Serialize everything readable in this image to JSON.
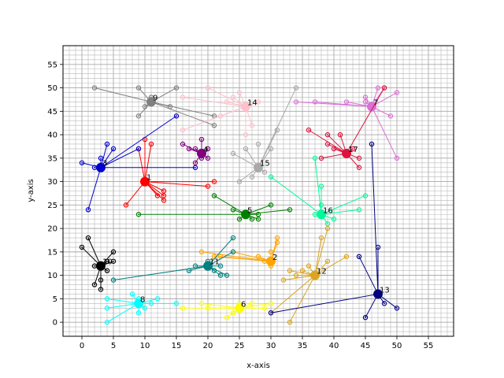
{
  "chart_data": {
    "type": "scatter",
    "title": "",
    "xlabel": "x-axis",
    "ylabel": "y-axis",
    "xlim": [
      -3,
      59
    ],
    "ylim": [
      -3,
      59
    ],
    "grid": true,
    "grid_style": "major and minor, gray",
    "xticks": [
      "0",
      "5",
      "10",
      "15",
      "20",
      "25",
      "30",
      "35",
      "40",
      "45",
      "50",
      "55"
    ],
    "yticks": [
      "0",
      "5",
      "10",
      "15",
      "20",
      "25",
      "30",
      "35",
      "40",
      "45",
      "50",
      "55"
    ],
    "clusters": [
      {
        "label": "1",
        "color": "#ff0000",
        "center": [
          10,
          30
        ],
        "points": [
          [
            7,
            25
          ],
          [
            9,
            37
          ],
          [
            10,
            39
          ],
          [
            11,
            38
          ],
          [
            12,
            27
          ],
          [
            13,
            28
          ],
          [
            13,
            27
          ],
          [
            13,
            26
          ],
          [
            20,
            29
          ],
          [
            21,
            30
          ]
        ]
      },
      {
        "label": "2",
        "color": "#ffa500",
        "center": [
          30,
          13
        ],
        "points": [
          [
            19,
            15
          ],
          [
            21,
            14
          ],
          [
            22,
            14
          ],
          [
            24,
            15
          ],
          [
            28,
            14
          ],
          [
            29,
            13
          ],
          [
            30,
            12
          ],
          [
            30,
            15
          ],
          [
            31,
            17
          ],
          [
            31,
            18
          ]
        ]
      },
      {
        "label": "3",
        "color": "#0000cd",
        "center": [
          3,
          33
        ],
        "points": [
          [
            0,
            34
          ],
          [
            1,
            24
          ],
          [
            2,
            33
          ],
          [
            3,
            35
          ],
          [
            4,
            38
          ],
          [
            5,
            37
          ],
          [
            9,
            37
          ],
          [
            15,
            44
          ],
          [
            18,
            33
          ]
        ]
      },
      {
        "label": "4",
        "color": "#800080",
        "center": [
          19,
          36
        ],
        "points": [
          [
            16,
            38
          ],
          [
            17,
            37
          ],
          [
            18,
            37
          ],
          [
            18,
            34
          ],
          [
            19,
            35
          ],
          [
            19,
            39
          ],
          [
            20,
            35
          ],
          [
            20,
            37
          ]
        ]
      },
      {
        "label": "5",
        "color": "#008000",
        "center": [
          26,
          23
        ],
        "points": [
          [
            9,
            23
          ],
          [
            21,
            27
          ],
          [
            24,
            24
          ],
          [
            25,
            22
          ],
          [
            27,
            22
          ],
          [
            28,
            22
          ],
          [
            28,
            23
          ],
          [
            30,
            25
          ],
          [
            33,
            24
          ]
        ]
      },
      {
        "label": "6",
        "color": "#ffff00",
        "center": [
          25,
          3
        ],
        "points": [
          [
            16,
            3
          ],
          [
            19,
            4
          ],
          [
            20,
            3
          ],
          [
            23,
            1
          ],
          [
            24,
            2
          ],
          [
            25,
            4
          ],
          [
            27,
            4
          ],
          [
            29,
            3
          ],
          [
            30,
            4
          ]
        ]
      },
      {
        "label": "7",
        "color": "#da70d6",
        "center": [
          46,
          46
        ],
        "points": [
          [
            34,
            47
          ],
          [
            37,
            47
          ],
          [
            42,
            47
          ],
          [
            45,
            47
          ],
          [
            45,
            48
          ],
          [
            47,
            50
          ],
          [
            48,
            50
          ],
          [
            49,
            44
          ],
          [
            50,
            49
          ],
          [
            50,
            35
          ]
        ]
      },
      {
        "label": "8",
        "color": "#00ffff",
        "center": [
          9,
          4
        ],
        "points": [
          [
            4,
            5
          ],
          [
            4,
            3
          ],
          [
            4,
            0
          ],
          [
            8,
            6
          ],
          [
            9,
            2
          ],
          [
            9,
            5
          ],
          [
            10,
            3
          ],
          [
            11,
            4
          ],
          [
            12,
            5
          ],
          [
            15,
            4
          ]
        ]
      },
      {
        "label": "9",
        "color": "#808080",
        "center": [
          11,
          47
        ],
        "points": [
          [
            2,
            50
          ],
          [
            9,
            44
          ],
          [
            9,
            50
          ],
          [
            10,
            46
          ],
          [
            11,
            48
          ],
          [
            14,
            46
          ],
          [
            15,
            50
          ],
          [
            21,
            44
          ],
          [
            21,
            42
          ]
        ]
      },
      {
        "label": "10",
        "color": "#000000",
        "center": [
          3,
          12
        ],
        "points": [
          [
            0,
            16
          ],
          [
            1,
            18
          ],
          [
            2,
            12
          ],
          [
            2,
            8
          ],
          [
            3,
            7
          ],
          [
            3,
            9
          ],
          [
            4,
            11
          ],
          [
            4,
            13
          ],
          [
            5,
            15
          ],
          [
            5,
            13
          ]
        ]
      },
      {
        "label": "11",
        "color": "#008080",
        "center": [
          20,
          12
        ],
        "points": [
          [
            5,
            9
          ],
          [
            17,
            11
          ],
          [
            18,
            12
          ],
          [
            20,
            13
          ],
          [
            21,
            11
          ],
          [
            22,
            10
          ],
          [
            22,
            12
          ],
          [
            23,
            10
          ],
          [
            24,
            15
          ],
          [
            24,
            18
          ]
        ]
      },
      {
        "label": "12",
        "color": "#daa520",
        "center": [
          37,
          10
        ],
        "points": [
          [
            30,
            2
          ],
          [
            32,
            9
          ],
          [
            33,
            11
          ],
          [
            34,
            10
          ],
          [
            35,
            11
          ],
          [
            36,
            12
          ],
          [
            33,
            0
          ],
          [
            38,
            18
          ],
          [
            39,
            20
          ],
          [
            39,
            13
          ],
          [
            42,
            14
          ]
        ]
      },
      {
        "label": "13",
        "color": "#000080",
        "center": [
          47,
          6
        ],
        "points": [
          [
            30,
            2
          ],
          [
            44,
            14
          ],
          [
            45,
            1
          ],
          [
            46,
            38
          ],
          [
            47,
            16
          ],
          [
            48,
            4
          ],
          [
            50,
            3
          ]
        ]
      },
      {
        "label": "14",
        "color": "#ffc0cb",
        "center": [
          26,
          46
        ],
        "points": [
          [
            16,
            48
          ],
          [
            16,
            41
          ],
          [
            20,
            50
          ],
          [
            22,
            44
          ],
          [
            23,
            47
          ],
          [
            24,
            48
          ],
          [
            25,
            49
          ],
          [
            26,
            40
          ],
          [
            27,
            42
          ],
          [
            28,
            47
          ]
        ]
      },
      {
        "label": "15",
        "color": "#a9a9a9",
        "center": [
          28,
          33
        ],
        "points": [
          [
            24,
            36
          ],
          [
            25,
            30
          ],
          [
            26,
            37
          ],
          [
            27,
            31
          ],
          [
            28,
            38
          ],
          [
            29,
            32
          ],
          [
            30,
            37
          ],
          [
            31,
            41
          ],
          [
            34,
            50
          ]
        ]
      },
      {
        "label": "16",
        "color": "#00fa9a",
        "center": [
          38,
          23
        ],
        "points": [
          [
            30,
            31
          ],
          [
            37,
            35
          ],
          [
            37,
            23
          ],
          [
            38,
            25
          ],
          [
            38,
            29
          ],
          [
            39,
            21
          ],
          [
            40,
            22
          ],
          [
            44,
            24
          ],
          [
            45,
            27
          ]
        ]
      },
      {
        "label": "17",
        "color": "#dc143c",
        "center": [
          42,
          36
        ],
        "points": [
          [
            36,
            41
          ],
          [
            38,
            35
          ],
          [
            39,
            40
          ],
          [
            39,
            38
          ],
          [
            40,
            37
          ],
          [
            41,
            40
          ],
          [
            43,
            37
          ],
          [
            44,
            35
          ],
          [
            44,
            33
          ],
          [
            48,
            50
          ]
        ]
      }
    ]
  }
}
